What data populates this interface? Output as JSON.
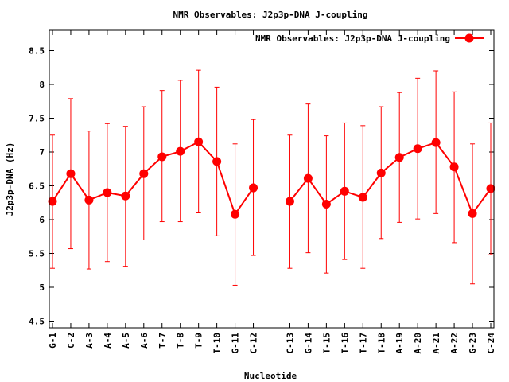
{
  "chart_data": {
    "type": "line",
    "title": "NMR Observables: J2p3p-DNA J-coupling",
    "xlabel": "Nucleotide",
    "ylabel": "J2p3p-DNA (Hz)",
    "ylim": [
      4.4,
      8.8
    ],
    "y_ticks": [
      4.5,
      5,
      5.5,
      6,
      6.5,
      7,
      7.5,
      8,
      8.5
    ],
    "y_tick_labels": [
      "4.5",
      "5",
      "5.5",
      "6",
      "6.5",
      "7",
      "7.5",
      "8",
      "8.5"
    ],
    "xlim": [
      1,
      25
    ],
    "grid": false,
    "legend_position": "top-right",
    "color": "#ff0000",
    "categories": [
      "G-1",
      "C-2",
      "A-3",
      "A-4",
      "A-5",
      "A-6",
      "T-7",
      "T-8",
      "T-9",
      "T-10",
      "G-11",
      "C-12",
      "C-13",
      "G-14",
      "T-15",
      "T-16",
      "T-17",
      "T-18",
      "A-19",
      "A-20",
      "A-21",
      "A-22",
      "G-23",
      "C-24"
    ],
    "x": [
      1,
      2,
      3,
      4,
      5,
      6,
      7,
      8,
      9,
      10,
      11,
      12,
      14,
      15,
      16,
      17,
      18,
      19,
      20,
      21,
      22,
      23,
      24,
      25
    ],
    "series": [
      {
        "name": "NMR Observables: J2p3p-DNA J-coupling",
        "segments": [
          [
            0,
            11
          ],
          [
            12,
            23
          ]
        ],
        "values": [
          6.27,
          6.68,
          6.29,
          6.4,
          6.35,
          6.68,
          6.93,
          7.01,
          7.15,
          6.86,
          6.08,
          6.47,
          6.27,
          6.61,
          6.23,
          6.42,
          6.33,
          6.69,
          6.92,
          7.05,
          7.14,
          6.78,
          6.09,
          6.46
        ],
        "err_low": [
          5.28,
          5.57,
          5.27,
          5.38,
          5.31,
          5.7,
          5.97,
          5.97,
          6.1,
          5.76,
          5.03,
          5.47,
          5.28,
          5.51,
          5.21,
          5.41,
          5.28,
          5.72,
          5.96,
          6.01,
          6.09,
          5.66,
          5.05,
          5.48
        ],
        "err_high": [
          7.25,
          7.79,
          7.31,
          7.42,
          7.38,
          7.67,
          7.91,
          8.06,
          8.21,
          7.96,
          7.12,
          7.48,
          7.25,
          7.71,
          7.24,
          7.43,
          7.39,
          7.67,
          7.88,
          8.09,
          8.2,
          7.89,
          7.12,
          7.43
        ]
      }
    ]
  }
}
